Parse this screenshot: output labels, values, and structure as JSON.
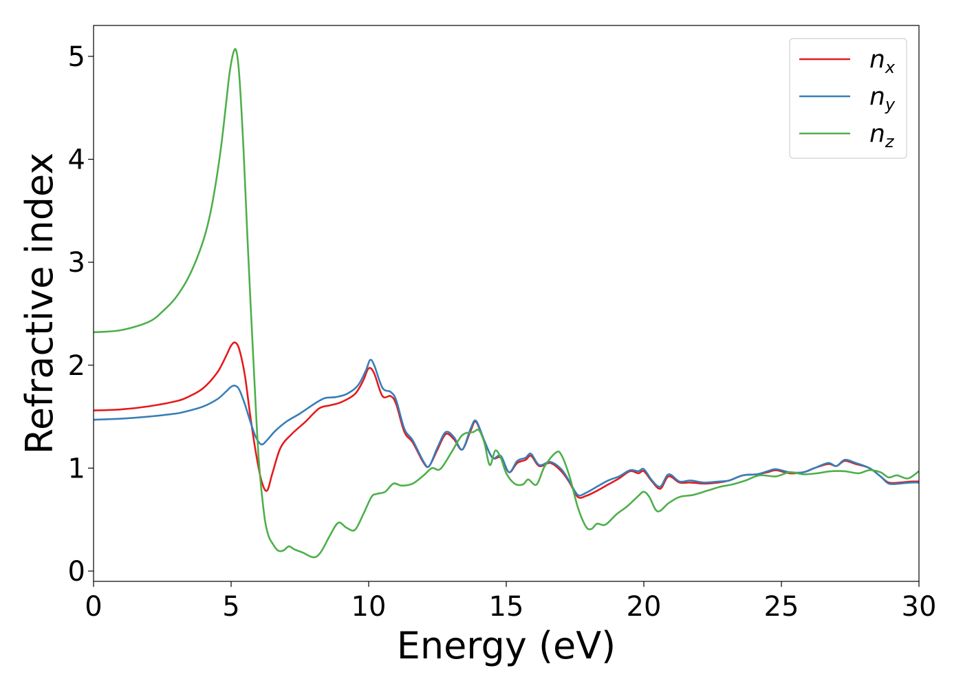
{
  "chart_data": {
    "type": "line",
    "title": "",
    "xlabel": "Energy (eV)",
    "ylabel": "Refractive index",
    "xlim": [
      0,
      30
    ],
    "ylim": [
      -0.1,
      5.3
    ],
    "xticks": [
      0,
      5,
      10,
      15,
      20,
      25,
      30
    ],
    "yticks": [
      0,
      1,
      2,
      3,
      4,
      5
    ],
    "grid": false,
    "legend_position": "top-right",
    "series": [
      {
        "name": "n",
        "subscript": "x",
        "color": "#e41a1c",
        "x": [
          0,
          1,
          2,
          3,
          3.5,
          4,
          4.5,
          4.8,
          5.0,
          5.15,
          5.3,
          5.5,
          5.7,
          5.9,
          6.1,
          6.3,
          6.5,
          6.8,
          7.2,
          7.7,
          8.2,
          8.6,
          9.0,
          9.5,
          9.8,
          10.0,
          10.2,
          10.5,
          10.8,
          11.0,
          11.3,
          11.6,
          12.0,
          12.2,
          12.5,
          12.8,
          13.1,
          13.4,
          13.7,
          13.9,
          14.2,
          14.5,
          14.8,
          15.1,
          15.4,
          15.7,
          15.9,
          16.2,
          16.6,
          17.0,
          17.3,
          17.6,
          17.9,
          18.3,
          18.7,
          19.1,
          19.5,
          19.8,
          20.0,
          20.3,
          20.6,
          20.9,
          21.3,
          21.7,
          22.2,
          22.7,
          23.1,
          23.6,
          24.1,
          24.5,
          24.8,
          25.3,
          25.8,
          26.2,
          26.7,
          27.0,
          27.3,
          27.7,
          28.2,
          28.6,
          28.9,
          29.3,
          29.7,
          30
        ],
        "y": [
          1.56,
          1.57,
          1.6,
          1.65,
          1.7,
          1.78,
          1.93,
          2.08,
          2.19,
          2.22,
          2.15,
          1.9,
          1.5,
          1.15,
          0.88,
          0.78,
          0.95,
          1.2,
          1.33,
          1.45,
          1.58,
          1.61,
          1.64,
          1.72,
          1.85,
          1.97,
          1.92,
          1.7,
          1.7,
          1.62,
          1.35,
          1.25,
          1.05,
          1.02,
          1.18,
          1.33,
          1.28,
          1.18,
          1.36,
          1.45,
          1.26,
          1.1,
          1.1,
          0.96,
          1.05,
          1.08,
          1.12,
          1.02,
          1.05,
          0.97,
          0.86,
          0.72,
          0.73,
          0.78,
          0.84,
          0.9,
          0.97,
          0.95,
          0.97,
          0.87,
          0.8,
          0.92,
          0.86,
          0.86,
          0.85,
          0.86,
          0.88,
          0.93,
          0.94,
          0.96,
          0.98,
          0.95,
          0.96,
          1.0,
          1.04,
          1.02,
          1.07,
          1.04,
          1.0,
          0.92,
          0.86,
          0.86,
          0.87,
          0.87
        ]
      },
      {
        "name": "n",
        "subscript": "y",
        "color": "#377eb8",
        "x": [
          0,
          1,
          2,
          3,
          3.5,
          4,
          4.5,
          4.8,
          5.0,
          5.15,
          5.3,
          5.5,
          5.7,
          5.9,
          6.1,
          6.3,
          6.6,
          7.0,
          7.5,
          8.0,
          8.4,
          8.8,
          9.2,
          9.6,
          9.9,
          10.05,
          10.2,
          10.5,
          10.8,
          11.0,
          11.3,
          11.6,
          12.0,
          12.2,
          12.5,
          12.8,
          13.1,
          13.4,
          13.7,
          13.9,
          14.2,
          14.5,
          14.8,
          15.1,
          15.4,
          15.7,
          15.9,
          16.2,
          16.6,
          17.0,
          17.3,
          17.6,
          17.9,
          18.3,
          18.7,
          19.1,
          19.5,
          19.8,
          20.0,
          20.3,
          20.6,
          20.9,
          21.3,
          21.7,
          22.2,
          22.7,
          23.1,
          23.6,
          24.1,
          24.5,
          24.8,
          25.3,
          25.8,
          26.2,
          26.7,
          27.0,
          27.3,
          27.7,
          28.2,
          28.6,
          28.9,
          29.3,
          29.7,
          30
        ],
        "y": [
          1.47,
          1.48,
          1.5,
          1.53,
          1.56,
          1.6,
          1.67,
          1.74,
          1.79,
          1.8,
          1.76,
          1.62,
          1.45,
          1.3,
          1.23,
          1.27,
          1.36,
          1.45,
          1.53,
          1.62,
          1.68,
          1.69,
          1.72,
          1.8,
          1.95,
          2.05,
          2.0,
          1.78,
          1.74,
          1.66,
          1.38,
          1.27,
          1.06,
          1.02,
          1.2,
          1.35,
          1.3,
          1.18,
          1.38,
          1.46,
          1.27,
          1.1,
          1.12,
          0.96,
          1.07,
          1.1,
          1.14,
          1.03,
          1.06,
          0.99,
          0.87,
          0.74,
          0.76,
          0.82,
          0.88,
          0.92,
          0.98,
          0.97,
          0.99,
          0.88,
          0.82,
          0.94,
          0.87,
          0.88,
          0.86,
          0.87,
          0.88,
          0.93,
          0.94,
          0.97,
          0.99,
          0.96,
          0.96,
          1.0,
          1.05,
          1.02,
          1.08,
          1.05,
          1.0,
          0.92,
          0.85,
          0.85,
          0.86,
          0.86
        ]
      },
      {
        "name": "n",
        "subscript": "z",
        "color": "#4daf4a",
        "x": [
          0,
          1,
          2,
          2.5,
          3,
          3.5,
          4,
          4.3,
          4.6,
          4.8,
          4.95,
          5.1,
          5.2,
          5.3,
          5.45,
          5.6,
          5.8,
          6.0,
          6.2,
          6.35,
          6.5,
          6.7,
          6.9,
          7.1,
          7.3,
          7.6,
          7.9,
          8.1,
          8.3,
          8.6,
          8.9,
          9.2,
          9.5,
          9.8,
          10.1,
          10.3,
          10.6,
          10.9,
          11.2,
          11.6,
          12.0,
          12.3,
          12.6,
          13.0,
          13.4,
          13.8,
          14.0,
          14.2,
          14.4,
          14.6,
          14.8,
          15.0,
          15.3,
          15.6,
          15.8,
          16.1,
          16.4,
          16.8,
          17.0,
          17.3,
          17.6,
          17.9,
          18.1,
          18.3,
          18.6,
          19.0,
          19.4,
          19.8,
          20.0,
          20.2,
          20.5,
          20.9,
          21.3,
          21.8,
          22.3,
          22.8,
          23.2,
          23.7,
          24.2,
          24.8,
          25.3,
          25.8,
          26.3,
          26.8,
          27.3,
          27.8,
          28.2,
          28.6,
          28.9,
          29.2,
          29.6,
          30
        ],
        "y": [
          2.32,
          2.34,
          2.42,
          2.52,
          2.66,
          2.88,
          3.22,
          3.55,
          4.05,
          4.5,
          4.85,
          5.05,
          5.04,
          4.8,
          4.1,
          3.2,
          2.1,
          1.1,
          0.55,
          0.35,
          0.27,
          0.2,
          0.2,
          0.24,
          0.21,
          0.18,
          0.14,
          0.14,
          0.2,
          0.35,
          0.47,
          0.42,
          0.4,
          0.55,
          0.72,
          0.75,
          0.77,
          0.85,
          0.83,
          0.85,
          0.93,
          1.0,
          0.99,
          1.15,
          1.32,
          1.35,
          1.37,
          1.25,
          1.03,
          1.17,
          1.1,
          0.95,
          0.85,
          0.84,
          0.89,
          0.84,
          1.02,
          1.15,
          1.13,
          0.92,
          0.62,
          0.43,
          0.41,
          0.46,
          0.45,
          0.55,
          0.63,
          0.73,
          0.77,
          0.72,
          0.58,
          0.66,
          0.72,
          0.74,
          0.78,
          0.82,
          0.84,
          0.88,
          0.93,
          0.92,
          0.96,
          0.94,
          0.95,
          0.97,
          0.97,
          0.95,
          0.98,
          0.96,
          0.91,
          0.93,
          0.9,
          0.97
        ]
      }
    ]
  }
}
